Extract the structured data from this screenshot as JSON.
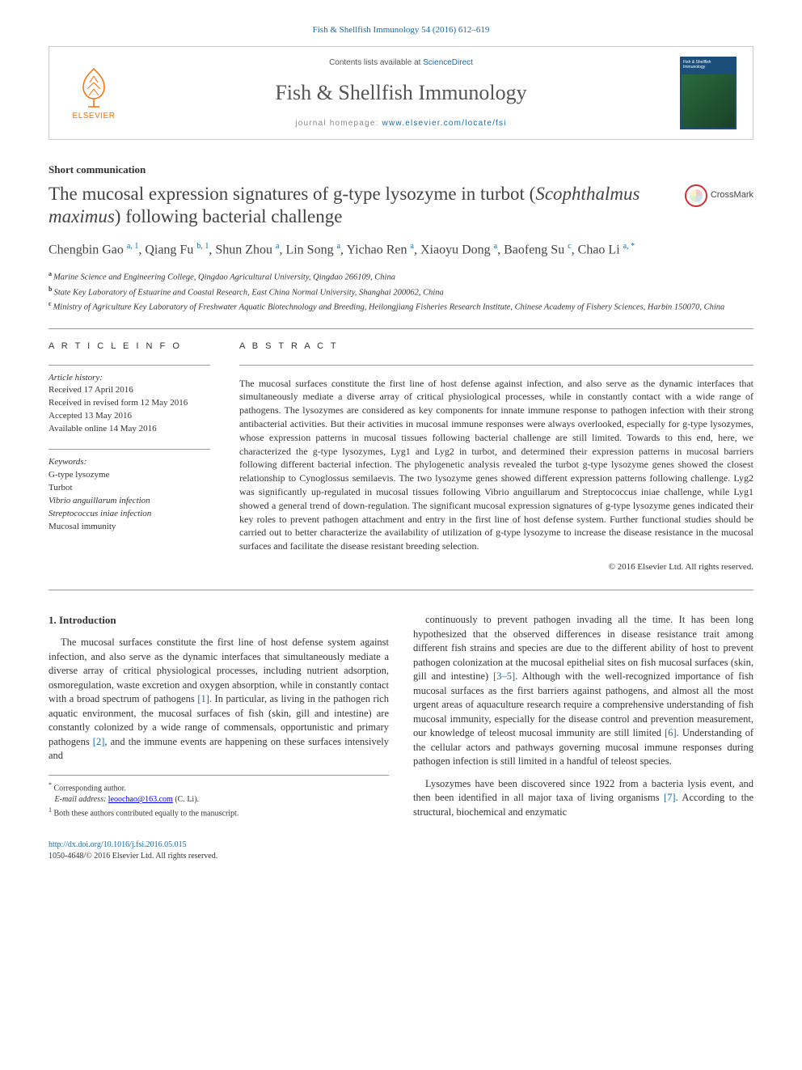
{
  "colors": {
    "link": "#1a6ba8",
    "accent": "#ff6c00",
    "rule": "#999999",
    "text": "#333333",
    "heading": "#444444",
    "cover_bg": "#1b4f7a"
  },
  "page_citation": "Fish & Shellfish Immunology 54 (2016) 612–619",
  "masthead": {
    "contents_prefix": "Contents lists available at ",
    "contents_link": "ScienceDirect",
    "journal": "Fish & Shellfish Immunology",
    "homepage_prefix": "journal homepage: ",
    "homepage_url": "www.elsevier.com/locate/fsi",
    "publisher": "ELSEVIER",
    "cover_title": "Fish & Shellfish Immunology"
  },
  "article_type": "Short communication",
  "title_pre": "The mucosal expression signatures of g-type lysozyme in turbot (",
  "title_em": "Scophthalmus maximus",
  "title_post": ") following bacterial challenge",
  "crossmark_label": "CrossMark",
  "authors_html": "Chengbin Gao <sup class=\"aff-sup\">a, 1</sup>, Qiang Fu <sup class=\"aff-sup\">b, 1</sup>, Shun Zhou <sup class=\"aff-sup\">a</sup>, Lin Song <sup class=\"aff-sup\">a</sup>, Yichao Ren <sup class=\"aff-sup\">a</sup>, Xiaoyu Dong <sup class=\"aff-sup\">a</sup>, Baofeng Su <sup class=\"aff-sup\">c</sup>, Chao Li <sup class=\"aff-sup\">a, *</sup>",
  "affiliations": {
    "a": "Marine Science and Engineering College, Qingdao Agricultural University, Qingdao 266109, China",
    "b": "State Key Laboratory of Estuarine and Coastal Research, East China Normal University, Shanghai 200062, China",
    "c": "Ministry of Agriculture Key Laboratory of Freshwater Aquatic Biotechnology and Breeding, Heilongjiang Fisheries Research Institute, Chinese Academy of Fishery Sciences, Harbin 150070, China"
  },
  "article_info_heading": "A R T I C L E  I N F O",
  "abstract_heading": "A B S T R A C T",
  "history": {
    "label": "Article history:",
    "received": "Received 17 April 2016",
    "revised": "Received in revised form 12 May 2016",
    "accepted": "Accepted 13 May 2016",
    "online": "Available online 14 May 2016"
  },
  "keywords_label": "Keywords:",
  "keywords": [
    "G-type lysozyme",
    "Turbot",
    "Vibrio anguillarum infection",
    "Streptococcus iniae infection",
    "Mucosal immunity"
  ],
  "abstract": "The mucosal surfaces constitute the first line of host defense against infection, and also serve as the dynamic interfaces that simultaneously mediate a diverse array of critical physiological processes, while in constantly contact with a wide range of pathogens. The lysozymes are considered as key components for innate immune response to pathogen infection with their strong antibacterial activities. But their activities in mucosal immune responses were always overlooked, especially for g-type lysozymes, whose expression patterns in mucosal tissues following bacterial challenge are still limited. Towards to this end, here, we characterized the g-type lysozymes, Lyg1 and Lyg2 in turbot, and determined their expression patterns in mucosal barriers following different bacterial infection. The phylogenetic analysis revealed the turbot g-type lysozyme genes showed the closest relationship to Cynoglossus semilaevis. The two lysozyme genes showed different expression patterns following challenge. Lyg2 was significantly up-regulated in mucosal tissues following Vibrio anguillarum and Streptococcus iniae challenge, while Lyg1 showed a general trend of down-regulation. The significant mucosal expression signatures of g-type lysozyme genes indicated their key roles to prevent pathogen attachment and entry in the first line of host defense system. Further functional studies should be carried out to better characterize the availability of utilization of g-type lysozyme to increase the disease resistance in the mucosal surfaces and facilitate the disease resistant breeding selection.",
  "copyright": "© 2016 Elsevier Ltd. All rights reserved.",
  "section1_heading": "1. Introduction",
  "body_p1": "The mucosal surfaces constitute the first line of host defense system against infection, and also serve as the dynamic interfaces that simultaneously mediate a diverse array of critical physiological processes, including nutrient adsorption, osmoregulation, waste excretion and oxygen absorption, while in constantly contact with a broad spectrum of pathogens [1]. In particular, as living in the pathogen rich aquatic environment, the mucosal surfaces of fish (skin, gill and intestine) are constantly colonized by a wide range of commensals, opportunistic and primary pathogens [2], and the immune events are happening on these surfaces intensively and",
  "body_p2": "continuously to prevent pathogen invading all the time. It has been long hypothesized that the observed differences in disease resistance trait among different fish strains and species are due to the different ability of host to prevent pathogen colonization at the mucosal epithelial sites on fish mucosal surfaces (skin, gill and intestine) [3–5]. Although with the well-recognized importance of fish mucosal surfaces as the first barriers against pathogens, and almost all the most urgent areas of aquaculture research require a comprehensive understanding of fish mucosal immunity, especially for the disease control and prevention measurement, our knowledge of teleost mucosal immunity are still limited [6]. Understanding of the cellular actors and pathways governing mucosal immune responses during pathogen infection is still limited in a handful of teleost species.",
  "body_p3": "Lysozymes have been discovered since 1922 from a bacteria lysis event, and then been identified in all major taxa of living organisms [7]. According to the structural, biochemical and enzymatic",
  "footnotes": {
    "corr_label": "*",
    "corr_text": "Corresponding author.",
    "email_label": "E-mail address:",
    "email": "leoochao@163.com",
    "email_name": "(C. Li).",
    "equal_label": "1",
    "equal_text": "Both these authors contributed equally to the manuscript."
  },
  "doi": {
    "url": "http://dx.doi.org/10.1016/j.fsi.2016.05.015",
    "issn_line": "1050-4648/© 2016 Elsevier Ltd. All rights reserved."
  }
}
